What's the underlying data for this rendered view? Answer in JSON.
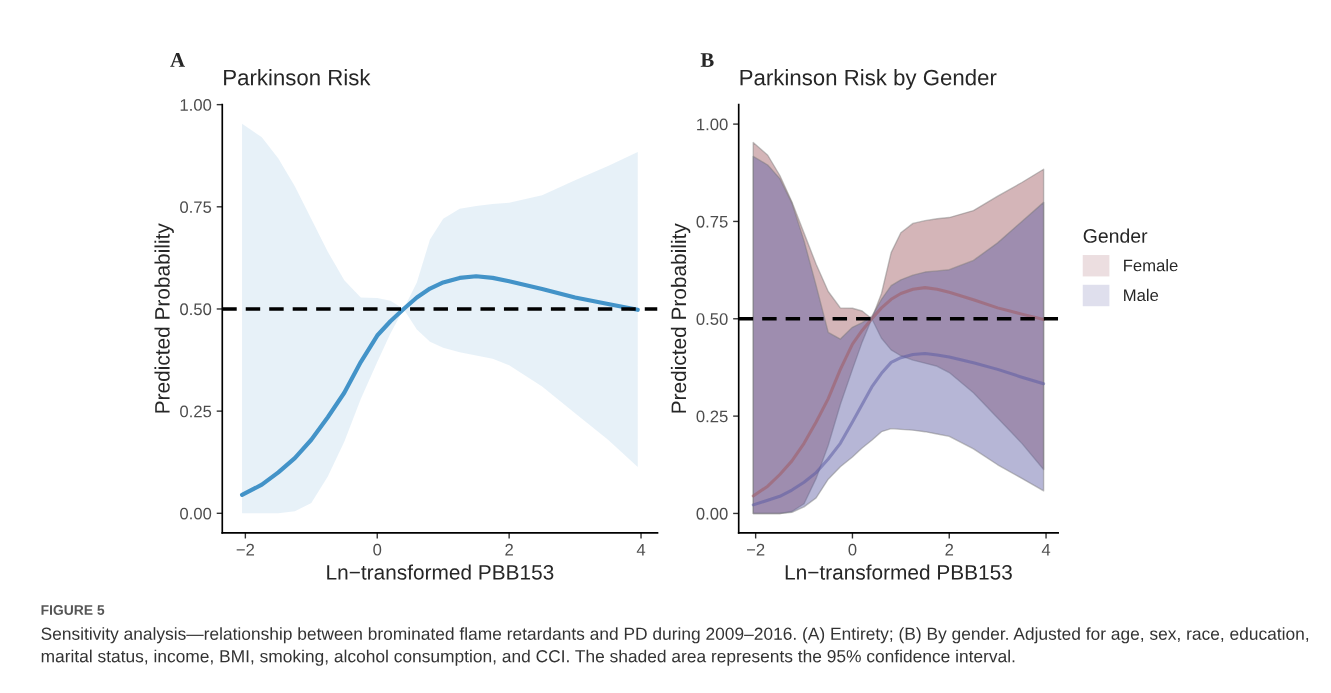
{
  "chart_data": [
    {
      "type": "line",
      "title": "Parkinson Risk",
      "xlabel": "Ln−transformed PBB153",
      "ylabel": "Predicted Probability",
      "annotations": [
        "A",
        "FIGURE 5",
        "Sensitivity analysis—relationship between brominated flame retardants and PD during 2009–2016. (A) Entirety; (B) By gender. Adjusted for age, sex, race, education, marital status, income, BMI, smoking, alcohol consumption, and CCI. The shaded area represents the 95% confidence interval."
      ],
      "xlim": [
        -2.35,
        4.25
      ],
      "xticks": [
        {
          "value": -2,
          "label": "−2"
        },
        0,
        2,
        4
      ],
      "ylim": [
        -0.048,
        1.0
      ],
      "yticks": [
        {
          "value": 0,
          "label": "0.00"
        },
        {
          "value": 0.25,
          "label": "0.25"
        },
        {
          "value": 0.5,
          "label": "0.50"
        },
        {
          "value": 0.75,
          "label": "0.75"
        },
        {
          "value": 1,
          "label": "1.00"
        }
      ],
      "grid": false,
      "legend": false,
      "ref_lines": [
        {
          "axis": "y",
          "value": 0.5,
          "color": "#000000",
          "line_style": "dashed"
        }
      ],
      "series": [
        {
          "color": "#4393c8",
          "x": [
            -2.05,
            -1.75,
            -1.5,
            -1.25,
            -1.0,
            -0.75,
            -0.5,
            -0.25,
            0,
            0.2,
            0.4,
            0.6,
            0.8,
            1.0,
            1.25,
            1.5,
            1.75,
            2.0,
            2.5,
            3.0,
            3.5,
            3.95
          ],
          "values": [
            0.045,
            0.07,
            0.1,
            0.135,
            0.18,
            0.235,
            0.295,
            0.37,
            0.435,
            0.47,
            0.5,
            0.528,
            0.55,
            0.565,
            0.576,
            0.58,
            0.576,
            0.568,
            0.549,
            0.528,
            0.512,
            0.498
          ],
          "upper": [
            0.953,
            0.92,
            0.868,
            0.8,
            0.72,
            0.64,
            0.57,
            0.528,
            0.527,
            0.52,
            0.5,
            0.565,
            0.67,
            0.721,
            0.745,
            0.752,
            0.757,
            0.76,
            0.778,
            0.815,
            0.85,
            0.884
          ],
          "lower": [
            0,
            0,
            0,
            0.005,
            0.025,
            0.09,
            0.175,
            0.28,
            0.37,
            0.44,
            0.5,
            0.45,
            0.42,
            0.405,
            0.394,
            0.386,
            0.378,
            0.362,
            0.31,
            0.245,
            0.18,
            0.113
          ]
        }
      ]
    },
    {
      "type": "line",
      "title": "Parkinson Risk by Gender",
      "xlabel": "Ln−transformed PBB153",
      "ylabel": "Predicted Probability",
      "legend_title": "Gender",
      "annotations": [
        "B"
      ],
      "xlim": [
        -2.35,
        4.25
      ],
      "xticks": [
        {
          "value": -2,
          "label": "−2"
        },
        0,
        2,
        4
      ],
      "ylim": [
        -0.05,
        1.05
      ],
      "yticks": [
        {
          "value": 0,
          "label": "0.00"
        },
        {
          "value": 0.25,
          "label": "0.25"
        },
        {
          "value": 0.5,
          "label": "0.50"
        },
        {
          "value": 0.75,
          "label": "0.75"
        },
        {
          "value": 1,
          "label": "1.00"
        }
      ],
      "grid": false,
      "legend": "right",
      "ref_lines": [
        {
          "axis": "y",
          "value": 0.5,
          "color": "#000000",
          "line_style": "dashed"
        }
      ],
      "series": [
        {
          "name": "Female",
          "color": "#a05b62",
          "x": [
            -2.05,
            -1.75,
            -1.5,
            -1.25,
            -1.0,
            -0.75,
            -0.5,
            -0.25,
            0,
            0.2,
            0.4,
            0.6,
            0.8,
            1.0,
            1.25,
            1.5,
            1.75,
            2.0,
            2.5,
            3.0,
            3.5,
            3.95
          ],
          "values": [
            0.045,
            0.07,
            0.1,
            0.135,
            0.18,
            0.235,
            0.295,
            0.37,
            0.435,
            0.47,
            0.5,
            0.528,
            0.55,
            0.565,
            0.576,
            0.58,
            0.576,
            0.568,
            0.549,
            0.528,
            0.512,
            0.498
          ],
          "upper": [
            0.953,
            0.92,
            0.868,
            0.8,
            0.72,
            0.64,
            0.57,
            0.528,
            0.527,
            0.52,
            0.5,
            0.565,
            0.67,
            0.721,
            0.745,
            0.752,
            0.757,
            0.76,
            0.778,
            0.815,
            0.85,
            0.884
          ],
          "lower": [
            0,
            0,
            0,
            0.005,
            0.025,
            0.09,
            0.175,
            0.28,
            0.37,
            0.44,
            0.5,
            0.45,
            0.42,
            0.405,
            0.394,
            0.386,
            0.378,
            0.362,
            0.31,
            0.245,
            0.18,
            0.113
          ]
        },
        {
          "name": "Male",
          "color": "#5d5da4",
          "x": [
            -2.05,
            -1.75,
            -1.5,
            -1.25,
            -1.0,
            -0.75,
            -0.5,
            -0.25,
            0,
            0.2,
            0.4,
            0.6,
            0.8,
            1.0,
            1.25,
            1.5,
            1.75,
            2.0,
            2.5,
            3.0,
            3.5,
            3.95
          ],
          "values": [
            0.022,
            0.034,
            0.044,
            0.06,
            0.08,
            0.105,
            0.14,
            0.18,
            0.235,
            0.28,
            0.325,
            0.36,
            0.388,
            0.4,
            0.408,
            0.411,
            0.407,
            0.402,
            0.387,
            0.37,
            0.35,
            0.333
          ],
          "upper": [
            0.917,
            0.895,
            0.86,
            0.797,
            0.7,
            0.585,
            0.465,
            0.448,
            0.478,
            0.49,
            0.506,
            0.55,
            0.585,
            0.6,
            0.612,
            0.62,
            0.623,
            0.626,
            0.65,
            0.695,
            0.75,
            0.799
          ],
          "lower": [
            0,
            0,
            0,
            0.003,
            0.017,
            0.04,
            0.088,
            0.12,
            0.145,
            0.168,
            0.188,
            0.21,
            0.218,
            0.216,
            0.214,
            0.21,
            0.204,
            0.198,
            0.166,
            0.125,
            0.09,
            0.058
          ]
        }
      ]
    }
  ]
}
